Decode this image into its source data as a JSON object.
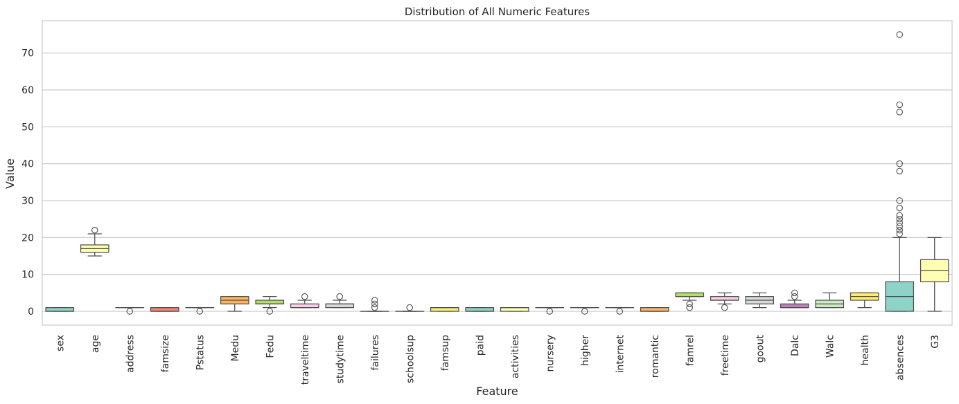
{
  "chart_data": {
    "type": "box",
    "title": "Distribution of All Numeric Features",
    "xlabel": "Feature",
    "ylabel": "Value",
    "ylim": [
      -3.75,
      78.75
    ],
    "yticks": [
      0,
      10,
      20,
      30,
      40,
      50,
      60,
      70
    ],
    "grid": "horizontal",
    "legend": "none",
    "categories": [
      "sex",
      "age",
      "address",
      "famsize",
      "Pstatus",
      "Medu",
      "Fedu",
      "traveltime",
      "studytime",
      "failures",
      "schoolsup",
      "famsup",
      "paid",
      "activities",
      "nursery",
      "higher",
      "internet",
      "romantic",
      "famrel",
      "freetime",
      "goout",
      "Dalc",
      "Walc",
      "health",
      "absences",
      "G3"
    ],
    "colors": [
      "#8dd3c7",
      "#ffffb3",
      "#bebada",
      "#fb8072",
      "#80b1d3",
      "#fdb462",
      "#b3de69",
      "#fccde5",
      "#d9d9d9",
      "#bc80bd",
      "#ccebc5",
      "#ffed6f",
      "#8dd3c7",
      "#ffffb3",
      "#bebada",
      "#fb8072",
      "#80b1d3",
      "#fdb462",
      "#b3de69",
      "#fccde5",
      "#d9d9d9",
      "#bc80bd",
      "#ccebc5",
      "#ffed6f",
      "#8dd3c7",
      "#ffffb3"
    ],
    "boxes": [
      {
        "q1": 0,
        "median": 0,
        "q3": 1,
        "whislo": 0,
        "whishi": 1,
        "fliers": []
      },
      {
        "q1": 16,
        "median": 17,
        "q3": 18,
        "whislo": 15,
        "whishi": 21,
        "fliers": [
          22
        ]
      },
      {
        "q1": 1,
        "median": 1,
        "q3": 1,
        "whislo": 1,
        "whishi": 1,
        "fliers": [
          0
        ]
      },
      {
        "q1": 0,
        "median": 0,
        "q3": 1,
        "whislo": 0,
        "whishi": 1,
        "fliers": []
      },
      {
        "q1": 1,
        "median": 1,
        "q3": 1,
        "whislo": 1,
        "whishi": 1,
        "fliers": [
          0
        ]
      },
      {
        "q1": 2,
        "median": 3,
        "q3": 4,
        "whislo": 0,
        "whishi": 4,
        "fliers": []
      },
      {
        "q1": 2,
        "median": 2,
        "q3": 3,
        "whislo": 1,
        "whishi": 4,
        "fliers": [
          0
        ]
      },
      {
        "q1": 1,
        "median": 1,
        "q3": 2,
        "whislo": 1,
        "whishi": 3,
        "fliers": [
          4
        ]
      },
      {
        "q1": 1,
        "median": 2,
        "q3": 2,
        "whislo": 1,
        "whishi": 3,
        "fliers": [
          4
        ]
      },
      {
        "q1": 0,
        "median": 0,
        "q3": 0,
        "whislo": 0,
        "whishi": 0,
        "fliers": [
          1,
          2,
          3
        ]
      },
      {
        "q1": 0,
        "median": 0,
        "q3": 0,
        "whislo": 0,
        "whishi": 0,
        "fliers": [
          1
        ]
      },
      {
        "q1": 0,
        "median": 1,
        "q3": 1,
        "whislo": 0,
        "whishi": 1,
        "fliers": []
      },
      {
        "q1": 0,
        "median": 0,
        "q3": 1,
        "whislo": 0,
        "whishi": 1,
        "fliers": []
      },
      {
        "q1": 0,
        "median": 1,
        "q3": 1,
        "whislo": 0,
        "whishi": 1,
        "fliers": []
      },
      {
        "q1": 1,
        "median": 1,
        "q3": 1,
        "whislo": 1,
        "whishi": 1,
        "fliers": [
          0
        ]
      },
      {
        "q1": 1,
        "median": 1,
        "q3": 1,
        "whislo": 1,
        "whishi": 1,
        "fliers": [
          0
        ]
      },
      {
        "q1": 1,
        "median": 1,
        "q3": 1,
        "whislo": 1,
        "whishi": 1,
        "fliers": [
          0
        ]
      },
      {
        "q1": 0,
        "median": 0,
        "q3": 1,
        "whislo": 0,
        "whishi": 1,
        "fliers": []
      },
      {
        "q1": 4,
        "median": 4,
        "q3": 5,
        "whislo": 3,
        "whishi": 5,
        "fliers": [
          1,
          2
        ]
      },
      {
        "q1": 3,
        "median": 3,
        "q3": 4,
        "whislo": 2,
        "whishi": 5,
        "fliers": [
          1
        ]
      },
      {
        "q1": 2,
        "median": 3,
        "q3": 4,
        "whislo": 1,
        "whishi": 5,
        "fliers": []
      },
      {
        "q1": 1,
        "median": 1,
        "q3": 2,
        "whislo": 1,
        "whishi": 3,
        "fliers": [
          4,
          5
        ]
      },
      {
        "q1": 1,
        "median": 2,
        "q3": 3,
        "whislo": 1,
        "whishi": 5,
        "fliers": []
      },
      {
        "q1": 3,
        "median": 4,
        "q3": 5,
        "whislo": 1,
        "whishi": 5,
        "fliers": []
      },
      {
        "q1": 0,
        "median": 4,
        "q3": 8,
        "whislo": 0,
        "whishi": 20,
        "fliers": [
          21,
          22,
          23,
          24,
          25,
          26,
          28,
          30,
          38,
          40,
          54,
          56,
          75
        ]
      },
      {
        "q1": 8,
        "median": 11,
        "q3": 14,
        "whislo": 0,
        "whishi": 20,
        "fliers": []
      }
    ]
  }
}
